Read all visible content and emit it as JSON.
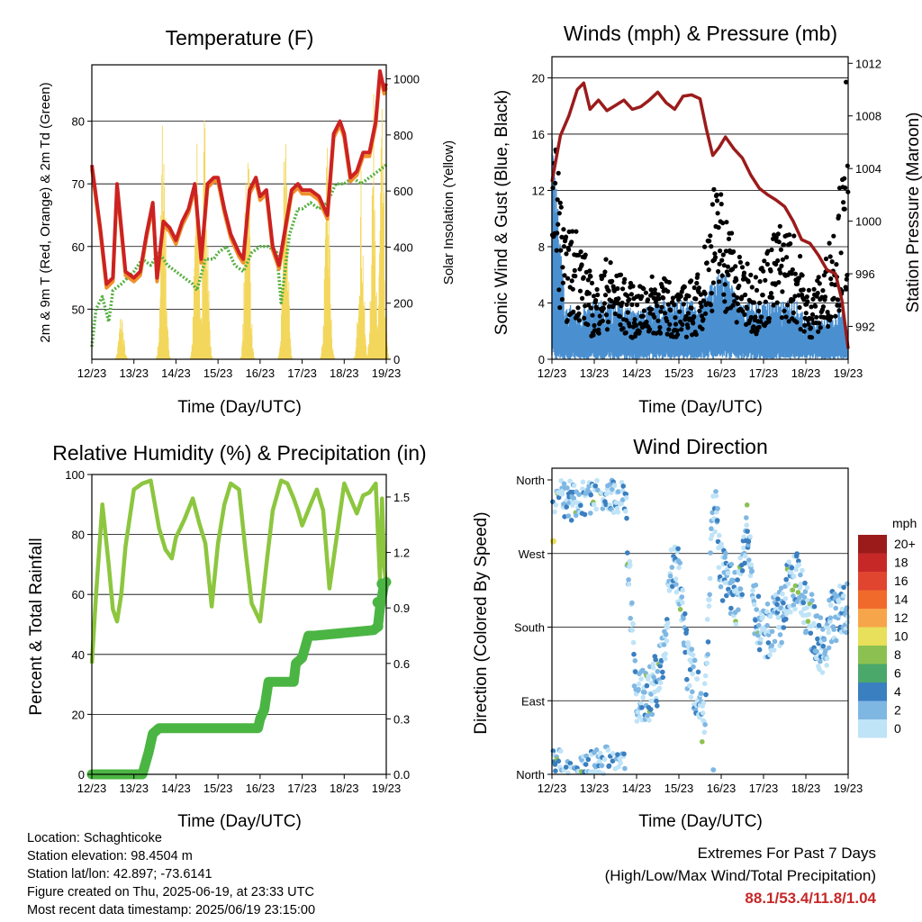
{
  "days": [
    "12/23",
    "13/23",
    "14/23",
    "15/23",
    "16/23",
    "17/23",
    "18/23",
    "19/23"
  ],
  "panels": {
    "temperature": {
      "title": "Temperature (F)",
      "left_label": "2m & 9m T (Red, Orange) & 2m Td (Green)",
      "right_label": "Solar Insolation (Yellow)",
      "x_label": "Time (Day/UTC)",
      "left_ticks": [
        "50",
        "60",
        "70",
        "80"
      ],
      "right_ticks": [
        "0",
        "200",
        "400",
        "600",
        "800",
        "1000"
      ]
    },
    "winds": {
      "title": "Winds (mph) & Pressure (mb)",
      "left_label": "Sonic Wind & Gust (Blue, Black)",
      "right_label": "Station Pressure (Maroon)",
      "x_label": "Time (Day/UTC)",
      "left_ticks": [
        "0",
        "4",
        "8",
        "12",
        "16",
        "20"
      ],
      "right_ticks": [
        "992",
        "996",
        "1000",
        "1004",
        "1008",
        "1012"
      ]
    },
    "humidity": {
      "title": "Relative Humidity (%) & Precipitation (in)",
      "left_label": "Percent & Total Rainfall",
      "x_label": "Time (Day/UTC)",
      "left_ticks": [
        "0",
        "20",
        "40",
        "60",
        "80",
        "100"
      ],
      "right_ticks": [
        "0.0",
        "0.3",
        "0.6",
        "0.9",
        "1.2",
        "1.5"
      ]
    },
    "direction": {
      "title": "Wind Direction",
      "left_label": "Direction (Colored By Speed)",
      "x_label": "Time (Day/UTC)",
      "dir_ticks": [
        "North",
        "East",
        "South",
        "West",
        "North"
      ],
      "legend_title": "mph",
      "legend_labels": [
        "20+",
        "18",
        "16",
        "14",
        "12",
        "10",
        "8",
        "6",
        "4",
        "2",
        "0"
      ],
      "legend_colors": [
        "#9b1b1b",
        "#c62828",
        "#e0452f",
        "#f06a2c",
        "#f7a54a",
        "#e8df5a",
        "#8cc152",
        "#4aa86a",
        "#3a7fc0",
        "#7fb7e3",
        "#bfe3f7"
      ]
    }
  },
  "info": {
    "location": "Location: Schaghticoke",
    "elevation": "Station elevation: 98.4504 m",
    "latlon": "Station lat/lon: 42.897; -73.6141",
    "created": "Figure created on Thu, 2025-06-19, at 23:33 UTC",
    "recent": "Most recent data timestamp: 2025/06/19 23:15:00"
  },
  "extremes": {
    "line1": "Extremes For Past 7 Days",
    "line2": "(High/Low/Max Wind/Total Precipitation)",
    "values": "88.1/53.4/11.8/1.04"
  },
  "chart_data": [
    {
      "type": "line",
      "title": "Temperature (F)",
      "xlabel": "Time (Day/UTC)",
      "ylabel": "2m & 9m T (Red, Orange) & 2m Td (Green)",
      "y2label": "Solar Insolation (Yellow)",
      "x_range_days": [
        12,
        19
      ],
      "ylim": [
        42,
        89
      ],
      "y2lim": [
        0,
        1050
      ],
      "series": [
        {
          "name": "2m T",
          "color": "#cc2222",
          "axis": "left",
          "x": [
            12.0,
            12.2,
            12.35,
            12.5,
            12.6,
            12.8,
            13.0,
            13.15,
            13.3,
            13.45,
            13.55,
            13.7,
            13.85,
            14.0,
            14.15,
            14.3,
            14.45,
            14.6,
            14.75,
            14.9,
            15.0,
            15.15,
            15.3,
            15.5,
            15.6,
            15.75,
            15.9,
            16.0,
            16.15,
            16.3,
            16.45,
            16.6,
            16.75,
            16.9,
            17.0,
            17.2,
            17.4,
            17.6,
            17.75,
            17.9,
            18.0,
            18.15,
            18.3,
            18.45,
            18.6,
            18.75,
            18.85,
            18.95,
            19.0
          ],
          "y": [
            73,
            63,
            54,
            55,
            70,
            56,
            55,
            56,
            62,
            67,
            55,
            64,
            63,
            61,
            64,
            66,
            70,
            58,
            70,
            71,
            71,
            66,
            62,
            59,
            58,
            69,
            71,
            68,
            69,
            60,
            57,
            63,
            69,
            70,
            69,
            69,
            68,
            65,
            78,
            80,
            78,
            71,
            72,
            75,
            75,
            80,
            88,
            85,
            86
          ]
        },
        {
          "name": "2m Td",
          "color": "#55b040",
          "axis": "left",
          "x": [
            12.0,
            12.1,
            12.25,
            12.4,
            12.5,
            12.7,
            13.0,
            13.2,
            13.4,
            13.6,
            13.8,
            14.0,
            14.2,
            14.4,
            14.5,
            14.7,
            14.9,
            15.0,
            15.2,
            15.4,
            15.6,
            15.8,
            16.0,
            16.2,
            16.4,
            16.5,
            16.7,
            16.9,
            17.0,
            17.2,
            17.4,
            17.6,
            17.8,
            18.0,
            18.2,
            18.4,
            18.6,
            18.8,
            19.0
          ],
          "y": [
            44,
            50,
            52,
            48,
            53,
            54,
            56,
            58,
            57,
            59,
            57,
            56,
            55,
            54,
            53,
            58,
            58,
            59,
            60,
            57,
            56,
            59,
            60,
            60,
            59,
            51,
            62,
            66,
            66,
            67,
            66,
            67,
            70,
            70,
            71,
            70,
            71,
            72,
            73
          ]
        },
        {
          "name": "Solar Insolation",
          "color": "#f3d75c",
          "axis": "right",
          "peaks_x": [
            12.7,
            13.7,
            14.5,
            14.7,
            15.7,
            16.6,
            17.6,
            18.4,
            18.7,
            18.9
          ],
          "peaks_y": [
            180,
            1000,
            800,
            1000,
            1000,
            950,
            900,
            700,
            950,
            900
          ]
        }
      ]
    },
    {
      "type": "scatter",
      "title": "Winds (mph) & Pressure (mb)",
      "xlabel": "Time (Day/UTC)",
      "ylabel": "Sonic Wind & Gust (Blue, Black)",
      "y2label": "Station Pressure (Maroon)",
      "x_range_days": [
        12,
        19
      ],
      "ylim": [
        0,
        21.5
      ],
      "y2lim": [
        989.5,
        1012.5
      ],
      "series": [
        {
          "name": "Station Pressure",
          "color": "#9b1b1b",
          "type": "line",
          "axis": "right",
          "x": [
            12.0,
            12.2,
            12.4,
            12.6,
            12.75,
            12.9,
            13.1,
            13.3,
            13.5,
            13.7,
            13.9,
            14.1,
            14.3,
            14.5,
            14.7,
            14.9,
            15.1,
            15.3,
            15.5,
            15.65,
            15.8,
            15.95,
            16.1,
            16.3,
            16.5,
            16.7,
            16.9,
            17.1,
            17.3,
            17.5,
            17.7,
            17.9,
            18.1,
            18.3,
            18.5,
            18.7,
            18.85,
            19.0
          ],
          "y": [
            1003,
            1006.5,
            1008,
            1010,
            1010.5,
            1008.5,
            1009.2,
            1008.4,
            1008.8,
            1009.2,
            1008.5,
            1008.7,
            1009.2,
            1009.8,
            1009,
            1008.5,
            1009.5,
            1009.6,
            1009.3,
            1007,
            1005,
            1005.6,
            1006.4,
            1005.5,
            1004.8,
            1003.5,
            1002.5,
            1002,
            1001.6,
            1001.1,
            1000,
            998.6,
            998.3,
            997.4,
            996.3,
            996,
            994,
            990.3
          ]
        },
        {
          "name": "Sonic Wind",
          "color": "#4a90d0",
          "type": "band",
          "axis": "left",
          "x": [
            12.0,
            12.1,
            12.3,
            12.6,
            13.0,
            13.5,
            14.0,
            14.5,
            15.0,
            15.5,
            15.8,
            16.0,
            16.4,
            16.8,
            17.0,
            17.4,
            17.8,
            18.0,
            18.4,
            18.8,
            19.0
          ],
          "y": [
            12,
            9,
            3,
            2.5,
            3,
            3,
            2.5,
            3,
            3,
            3,
            4,
            5,
            3,
            3,
            3,
            3,
            3,
            2,
            2,
            3,
            1.5
          ]
        },
        {
          "name": "Gust",
          "color": "#000000",
          "type": "scatter",
          "axis": "left",
          "x": [
            12.0,
            12.1,
            12.3,
            12.6,
            13.0,
            13.3,
            13.6,
            14.0,
            14.5,
            15.0,
            15.5,
            15.8,
            16.0,
            16.4,
            16.8,
            17.0,
            17.4,
            17.8,
            18.0,
            18.4,
            18.8,
            19.0
          ],
          "y": [
            18,
            13,
            7,
            8,
            4,
            6,
            5,
            4,
            5,
            4,
            5,
            10,
            10,
            6,
            5,
            6,
            8,
            7,
            4,
            5,
            10,
            12
          ]
        }
      ]
    },
    {
      "type": "line",
      "title": "Relative Humidity (%) & Precipitation (in)",
      "xlabel": "Time (Day/UTC)",
      "ylabel": "Percent & Total Rainfall",
      "x_range_days": [
        12,
        19
      ],
      "ylim": [
        -2,
        100
      ],
      "y2lim": [
        -0.03,
        1.63
      ],
      "series": [
        {
          "name": "Relative Humidity",
          "color": "#8cc63f",
          "axis": "left",
          "x": [
            12.0,
            12.1,
            12.25,
            12.4,
            12.5,
            12.6,
            12.7,
            12.8,
            13.0,
            13.2,
            13.4,
            13.6,
            13.75,
            13.9,
            14.0,
            14.2,
            14.4,
            14.55,
            14.7,
            14.85,
            15.0,
            15.15,
            15.3,
            15.5,
            15.65,
            15.8,
            16.0,
            16.15,
            16.3,
            16.5,
            16.65,
            16.8,
            16.9,
            17.0,
            17.2,
            17.35,
            17.5,
            17.65,
            17.8,
            18.0,
            18.15,
            18.3,
            18.45,
            18.6,
            18.75,
            18.85,
            18.9,
            18.95,
            19.0
          ],
          "y": [
            37,
            60,
            90,
            70,
            55,
            51,
            60,
            76,
            95,
            97,
            98,
            82,
            75,
            72,
            79,
            85,
            92,
            84,
            77,
            56,
            77,
            90,
            97,
            95,
            75,
            57,
            51,
            70,
            88,
            98,
            97,
            92,
            88,
            83,
            90,
            95,
            88,
            62,
            77,
            97,
            92,
            87,
            93,
            94,
            97,
            65,
            92,
            70,
            62
          ]
        },
        {
          "name": "Total Rainfall",
          "color": "#4bb543",
          "axis": "right",
          "x": [
            12.0,
            13.2,
            13.35,
            13.45,
            13.6,
            15.8,
            15.95,
            16.0,
            16.1,
            16.2,
            16.8,
            16.85,
            17.0,
            17.15,
            17.3,
            18.7,
            18.8,
            18.85,
            18.95,
            19.0
          ],
          "y": [
            0,
            0,
            0.12,
            0.22,
            0.25,
            0.25,
            0.25,
            0.3,
            0.35,
            0.5,
            0.5,
            0.6,
            0.63,
            0.75,
            0.75,
            0.78,
            0.8,
            0.9,
            1.03,
            1.04
          ]
        }
      ]
    },
    {
      "type": "scatter",
      "title": "Wind Direction",
      "xlabel": "Time (Day/UTC)",
      "ylabel": "Direction (Colored By Speed)",
      "x_range_days": [
        12,
        19
      ],
      "y_categories": [
        "North",
        "East",
        "South",
        "West",
        "North"
      ],
      "series": [
        {
          "name": "Wind Direction (deg)",
          "x": [
            12.2,
            12.5,
            12.8,
            13.0,
            13.3,
            13.5,
            13.7,
            14.0,
            14.3,
            14.6,
            14.8,
            15.0,
            15.2,
            15.4,
            15.6,
            15.8,
            16.0,
            16.2,
            16.4,
            16.6,
            16.8,
            17.0,
            17.2,
            17.4,
            17.6,
            17.8,
            18.0,
            18.2,
            18.4,
            18.6,
            18.8,
            19.0
          ],
          "y": [
            355,
            340,
            350,
            355,
            360,
            350,
            355,
            90,
            100,
            130,
            250,
            240,
            130,
            110,
            60,
            350,
            250,
            230,
            210,
            300,
            200,
            170,
            180,
            190,
            230,
            240,
            200,
            180,
            150,
            190,
            200,
            210
          ]
        }
      ]
    }
  ]
}
